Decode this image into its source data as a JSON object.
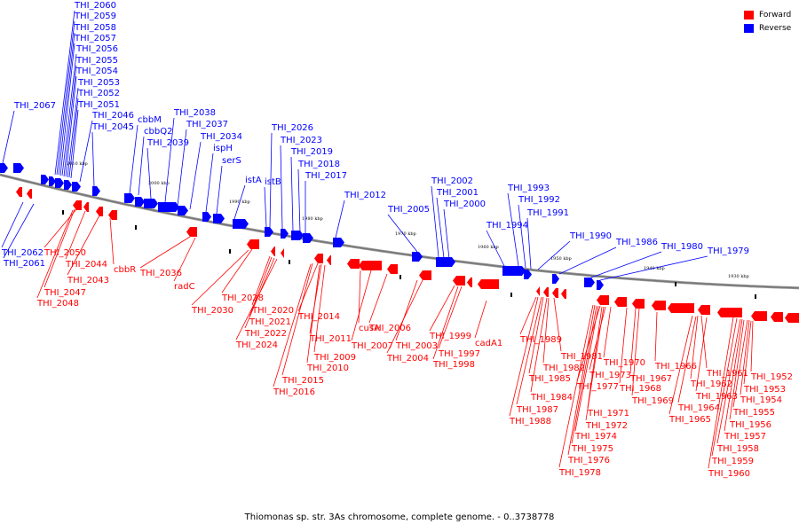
{
  "caption": "Thiomonas sp. str. 3As chromosome, complete genome. - 0..3738778",
  "legend": [
    {
      "label": "Forward",
      "color": "#ff0000"
    },
    {
      "label": "Reverse",
      "color": "#0000ff"
    }
  ],
  "colors": {
    "forward": "#ff0000",
    "reverse": "#0000ff",
    "backbone": "#777777"
  },
  "scale_ticks": [
    "2010 kbp",
    "2000 kbp",
    "1990 kbp",
    "1980 kbp",
    "1970 kbp",
    "1960 kbp",
    "1950 kbp",
    "1940 kbp",
    "1930 kbp"
  ],
  "reverse_labels": [
    "THI_2060",
    "THI_2059",
    "THI_2058",
    "THI_2057",
    "THI_2056",
    "THI_2055",
    "THI_2054",
    "THI_2053",
    "THI_2052",
    "THI_2051",
    "THI_2067",
    "THI_2046",
    "THI_2045",
    "cbbM",
    "cbbQ2",
    "THI_2039",
    "THI_2038",
    "THI_2037",
    "THI_2034",
    "ispH",
    "serS",
    "istA",
    "istB",
    "THI_2026",
    "THI_2023",
    "THI_2019",
    "THI_2018",
    "THI_2017",
    "THI_2012",
    "THI_2005",
    "THI_2002",
    "THI_2001",
    "THI_2000",
    "THI_1993",
    "THI_1992",
    "THI_1991",
    "THI_1994",
    "THI_1990",
    "THI_1986",
    "THI_1980",
    "THI_1979",
    "THI_2062",
    "THI_2061"
  ],
  "forward_labels": [
    "THI_2050",
    "THI_2044",
    "THI_2043",
    "cbbR",
    "THI_2047",
    "THI_2048",
    "THI_2036",
    "radC",
    "THI_2028",
    "THI_2030",
    "THI_2020",
    "THI_2021",
    "THI_2022",
    "THI_2024",
    "THI_2014",
    "THI_2011",
    "THI_2009",
    "THI_2010",
    "THI_2015",
    "THI_2016",
    "cusA",
    "THI_2007",
    "THI_2006",
    "THI_2003",
    "THI_2004",
    "THI_1999",
    "THI_1997",
    "THI_1998",
    "cadA1",
    "THI_1989",
    "THI_1981",
    "THI_1982",
    "THI_1985",
    "THI_1984",
    "THI_1987",
    "THI_1988",
    "THI_1970",
    "THI_1973",
    "THI_1977",
    "THI_1971",
    "THI_1972",
    "THI_1974",
    "THI_1975",
    "THI_1976",
    "THI_1978",
    "THI_1967",
    "THI_1968",
    "THI_1969",
    "THI_1966",
    "THI_1961",
    "THI_1962",
    "THI_1963",
    "THI_1964",
    "THI_1965",
    "THI_1952",
    "THI_1953",
    "THI_1954",
    "THI_1955",
    "THI_1956",
    "THI_1957",
    "THI_1958",
    "THI_1959",
    "THI_1960"
  ]
}
